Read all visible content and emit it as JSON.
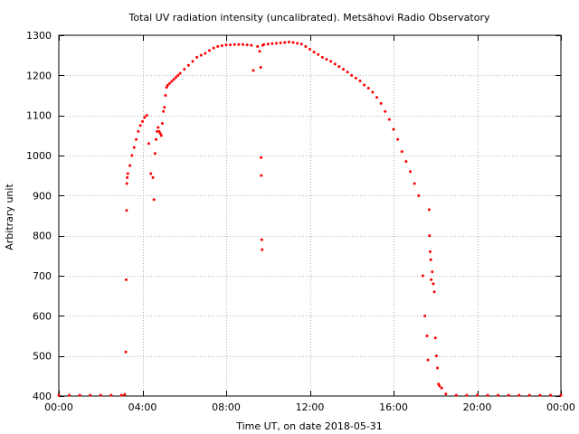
{
  "chart_data": {
    "type": "scatter",
    "title": "Total UV radiation intensity (uncalibrated). Metsähovi Radio Observatory",
    "xlabel": "Time UT, on date 2018-05-31",
    "ylabel": "Arbitrary unit",
    "xlim": [
      0,
      24
    ],
    "ylim": [
      400,
      1300
    ],
    "x_ticks": [
      0,
      4,
      8,
      12,
      16,
      20,
      24
    ],
    "x_tick_labels": [
      "00:00",
      "04:00",
      "08:00",
      "12:00",
      "16:00",
      "20:00",
      "00:00"
    ],
    "y_ticks": [
      400,
      500,
      600,
      700,
      800,
      900,
      1000,
      1100,
      1200,
      1300
    ],
    "y_tick_labels": [
      "400",
      "500",
      "600",
      "700",
      "800",
      "900",
      "1000",
      "1100",
      "1200",
      "1300"
    ],
    "grid": true,
    "marker_color": "#ff0000",
    "series": [
      {
        "x": [
          0.0,
          0.5,
          1.0,
          1.5,
          2.0,
          2.5,
          3.0,
          3.15,
          3.2,
          3.22,
          3.24,
          3.25,
          3.27,
          3.3,
          3.4,
          3.5,
          3.6,
          3.7,
          3.8,
          3.9,
          4.0,
          4.1,
          4.2,
          4.3,
          4.4,
          4.5,
          4.55,
          4.6,
          4.65,
          4.7,
          4.75,
          4.8,
          4.85,
          4.9,
          4.95,
          5.0,
          5.05,
          5.1,
          5.15,
          5.2,
          5.3,
          5.4,
          5.5,
          5.6,
          5.7,
          5.8,
          6.0,
          6.2,
          6.4,
          6.6,
          6.8,
          7.0,
          7.2,
          7.4,
          7.6,
          7.8,
          8.0,
          8.2,
          8.4,
          8.6,
          8.8,
          9.0,
          9.2,
          9.3,
          9.5,
          9.6,
          9.65,
          9.67,
          9.68,
          9.7,
          9.72,
          9.75,
          9.8,
          10.0,
          10.2,
          10.4,
          10.6,
          10.8,
          11.0,
          11.2,
          11.4,
          11.6,
          11.8,
          12.0,
          12.2,
          12.4,
          12.6,
          12.8,
          13.0,
          13.2,
          13.4,
          13.6,
          13.8,
          14.0,
          14.2,
          14.4,
          14.6,
          14.8,
          15.0,
          15.2,
          15.4,
          15.6,
          15.8,
          16.0,
          16.2,
          16.4,
          16.6,
          16.8,
          17.0,
          17.2,
          17.4,
          17.5,
          17.6,
          17.65,
          17.7,
          17.72,
          17.75,
          17.78,
          17.8,
          17.85,
          17.9,
          17.95,
          18.0,
          18.05,
          18.1,
          18.15,
          18.2,
          18.3,
          18.5,
          19.0,
          19.5,
          20.0,
          20.5,
          21.0,
          21.5,
          22.0,
          22.5,
          23.0,
          23.5,
          24.0
        ],
        "y": [
          402,
          402,
          402,
          402,
          402,
          402,
          402,
          404,
          510,
          690,
          863,
          930,
          945,
          955,
          975,
          1000,
          1020,
          1040,
          1060,
          1075,
          1085,
          1095,
          1100,
          1030,
          955,
          945,
          890,
          1005,
          1040,
          1060,
          1070,
          1060,
          1055,
          1050,
          1080,
          1110,
          1120,
          1150,
          1170,
          1175,
          1180,
          1185,
          1190,
          1195,
          1200,
          1205,
          1215,
          1225,
          1235,
          1245,
          1250,
          1255,
          1262,
          1268,
          1272,
          1274,
          1276,
          1276,
          1277,
          1277,
          1277,
          1276,
          1275,
          1212,
          1272,
          1260,
          1220,
          995,
          950,
          790,
          765,
          1275,
          1277,
          1278,
          1279,
          1280,
          1281,
          1282,
          1283,
          1282,
          1280,
          1278,
          1272,
          1265,
          1258,
          1252,
          1245,
          1240,
          1235,
          1228,
          1222,
          1215,
          1208,
          1200,
          1193,
          1186,
          1176,
          1168,
          1158,
          1145,
          1130,
          1110,
          1090,
          1065,
          1040,
          1010,
          985,
          960,
          930,
          900,
          700,
          600,
          550,
          490,
          865,
          800,
          760,
          740,
          690,
          710,
          680,
          660,
          545,
          500,
          470,
          430,
          425,
          420,
          405,
          402,
          402,
          402,
          402,
          402,
          402,
          402,
          402,
          402,
          402,
          402
        ]
      }
    ]
  }
}
